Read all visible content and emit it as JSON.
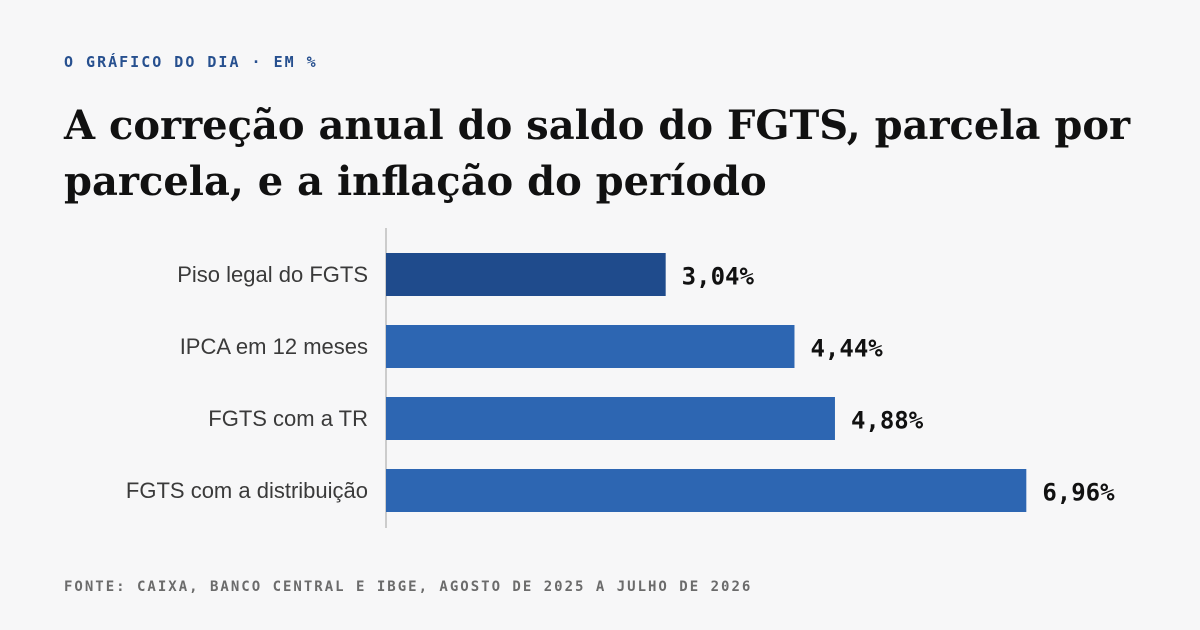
{
  "header": {
    "kicker": "O GRÁFICO DO DIA · EM %",
    "title": "A correção anual do saldo do FGTS, parcela por parcela, e a inflação do período"
  },
  "footer": {
    "source": "FONTE: CAIXA, BANCO CENTRAL E IBGE, AGOSTO DE 2025 A JULHO DE 2026"
  },
  "colors": {
    "accent": "#27508f",
    "bar_highlight": "#1f4b8c",
    "bar_default": "#2d66b2",
    "axis": "#bdbdbd"
  },
  "chart_data": {
    "type": "bar",
    "orientation": "horizontal",
    "categories": [
      "Piso legal do FGTS",
      "IPCA em 12 meses",
      "FGTS com a TR",
      "FGTS com a distribuição"
    ],
    "values": [
      3.04,
      4.44,
      4.88,
      6.96
    ],
    "value_labels": [
      "3,04%",
      "4,44%",
      "4,88%",
      "6,96%"
    ],
    "highlight_index": 0,
    "xlim": [
      0,
      7.5
    ],
    "grid": false,
    "legend": "none"
  }
}
